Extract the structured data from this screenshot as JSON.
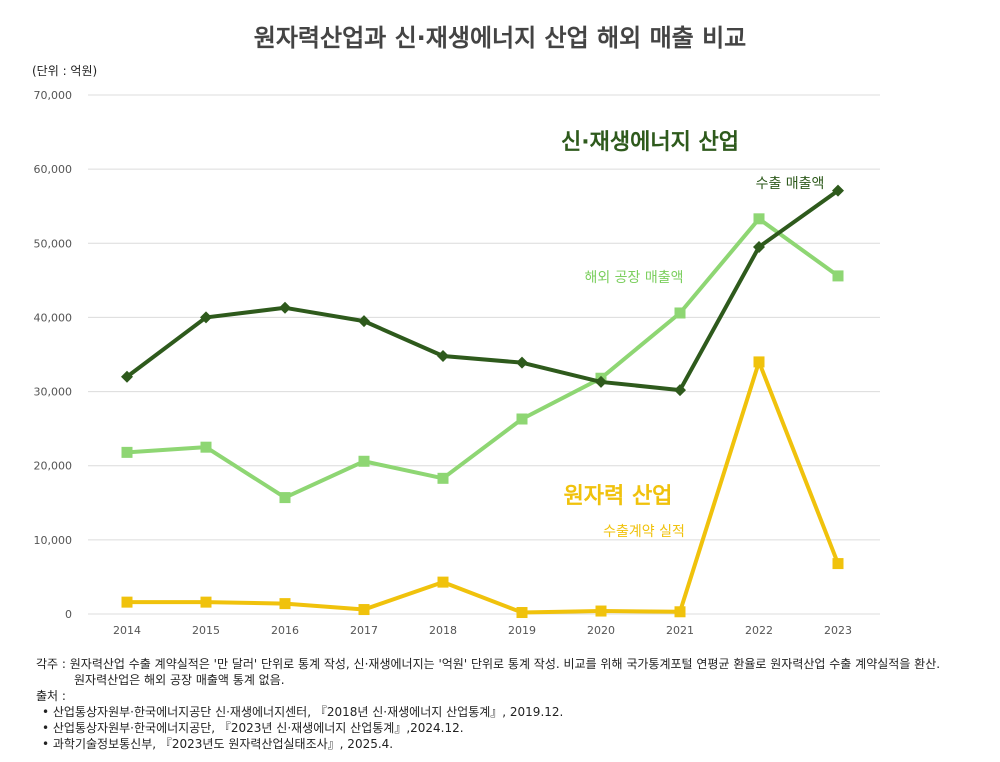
{
  "title": "원자력산업과 신·재생에너지 산업 해외 매출 비교",
  "unit_label": "(단위 : 억원)",
  "colors": {
    "renewable_export": "#2e5a1c",
    "renewable_overseas": "#8ed673",
    "nuclear": "#f0c20c",
    "grid": "#dcdcdc",
    "tick": "#555555"
  },
  "chart_data": {
    "type": "line",
    "x": [
      "2014",
      "2015",
      "2016",
      "2017",
      "2018",
      "2019",
      "2020",
      "2021",
      "2022",
      "2023"
    ],
    "ylim": [
      0,
      70000
    ],
    "yticks": [
      "0",
      "10,000",
      "20,000",
      "30,000",
      "40,000",
      "50,000",
      "60,000",
      "70,000"
    ],
    "ytick_values": [
      0,
      10000,
      20000,
      30000,
      40000,
      50000,
      60000,
      70000
    ],
    "grid": true,
    "series": [
      {
        "name": "수출 매출액",
        "group": "신·재생에너지 산업",
        "marker": "diamond",
        "values": [
          32000,
          40000,
          41300,
          39500,
          34800,
          33900,
          31300,
          30200,
          49500,
          57100
        ]
      },
      {
        "name": "해외 공장 매출액",
        "group": "신·재생에너지 산업",
        "marker": "square",
        "values": [
          21800,
          22500,
          15700,
          20600,
          18300,
          26300,
          31800,
          40600,
          53300,
          45600
        ]
      },
      {
        "name": "수출계약 실적",
        "group": "원자력 산업",
        "marker": "square",
        "values": [
          1600,
          1600,
          1400,
          600,
          4300,
          200,
          400,
          300,
          34000,
          6800
        ]
      }
    ],
    "annotations": {
      "renewable_group": "신·재생에너지 산업",
      "renewable_export": "수출 매출액",
      "renewable_overseas": "해외 공장 매출액",
      "nuclear_group": "원자력 산업",
      "nuclear_series": "수출계약 실적"
    }
  },
  "notes": {
    "caption_line1": "각주 : 원자력산업 수출 계약실적은 '만 달러' 단위로 통계 작성, 신·재생에너지는 '억원' 단위로 통계 작성. 비교를 위해 국가통계포털 연평균 환율로 원자력산업 수출 계약실적을 환산.",
    "caption_line2": "원자력산업은 해외 공장 매출액 통계 없음.",
    "source_heading": "출처 :",
    "sources": [
      "• 산업통상자원부·한국에너지공단 신·재생에너지센터, 『2018년 신·재생에너지 산업통계』, 2019.12.",
      "• 산업통상자원부·한국에너지공단, 『2023년 신·재생에너지 산업통계』,2024.12.",
      "• 과학기술정보통신부, 『2023년도 원자력산업실태조사』, 2025.4."
    ]
  }
}
